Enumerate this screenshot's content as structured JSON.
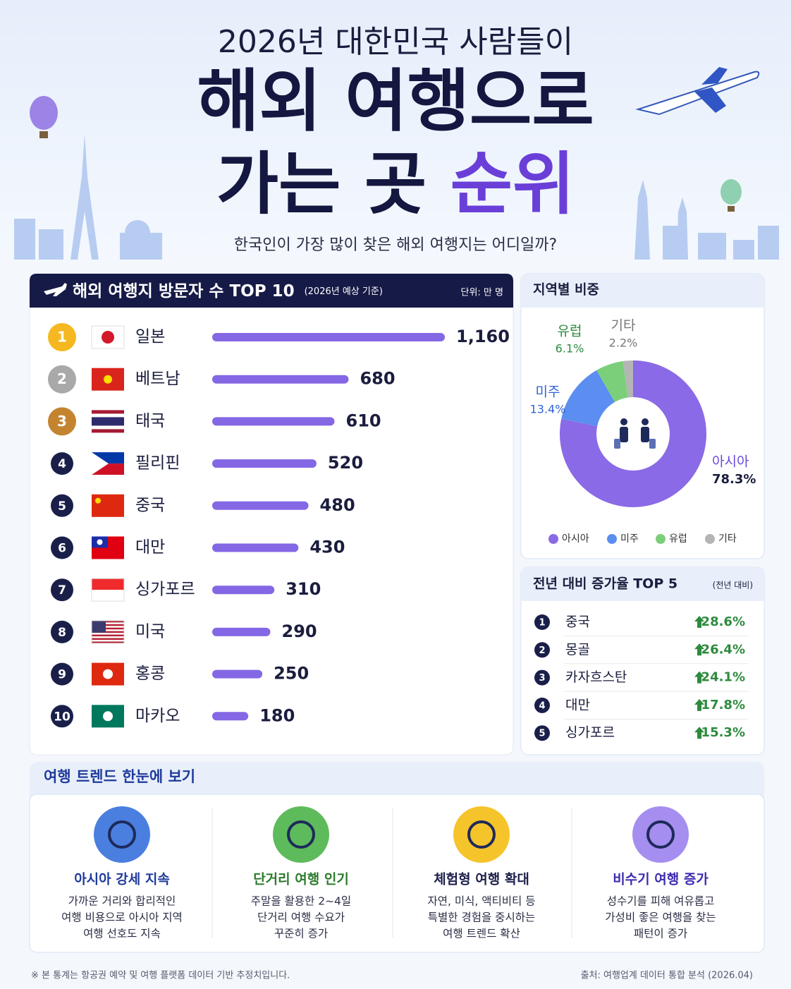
{
  "header": {
    "kicker": "2026년 대한민국 사람들이",
    "title_line1": "해외 여행으로",
    "title_line2": "가는 곳",
    "title_highlight": "순위",
    "subtitle": "한국인이 가장 많이 찾은 해외 여행지는 어디일까?"
  },
  "chart_data": [
    {
      "type": "bar",
      "title": "해외 여행지 방문자 수 TOP 10",
      "subtitle": "(2026년 예상 기준)",
      "unit": "단위: 만 명",
      "ranks": [
        "1",
        "2",
        "3",
        "4",
        "5",
        "6",
        "7",
        "8",
        "9",
        "10"
      ],
      "categories": [
        "일본",
        "베트남",
        "태국",
        "필리핀",
        "중국",
        "대만",
        "싱가포르",
        "미국",
        "홍콩",
        "마카오"
      ],
      "values": [
        1160,
        680,
        610,
        520,
        480,
        430,
        310,
        290,
        250,
        180
      ],
      "value_labels": [
        "1,160",
        "680",
        "610",
        "520",
        "480",
        "430",
        "310",
        "290",
        "250",
        "180"
      ],
      "color": "#8467e4"
    },
    {
      "type": "pie",
      "title": "지역별 비중",
      "categories": [
        "아시아",
        "미주",
        "유럽",
        "기타"
      ],
      "values": [
        78.3,
        13.4,
        6.1,
        2.2
      ],
      "value_labels": [
        "78.3%",
        "13.4%",
        "6.1%",
        "2.2%"
      ],
      "colors": [
        "#8a6ae6",
        "#5b8ef0",
        "#7ccf7a",
        "#b5b5b5"
      ]
    }
  ],
  "growth": {
    "title": "전년 대비 증가율 TOP 5",
    "note": "(전년 대비)",
    "rows": [
      [
        "1",
        "중국",
        "28.6%"
      ],
      [
        "2",
        "몽골",
        "26.4%"
      ],
      [
        "3",
        "카자흐스탄",
        "24.1%"
      ],
      [
        "4",
        "대만",
        "17.8%"
      ],
      [
        "5",
        "싱가포르",
        "15.3%"
      ]
    ]
  },
  "trends": {
    "title": "여행 트렌드 한눈에 보기",
    "items": [
      {
        "title": "아시아 강세 지속",
        "lines": [
          "가까운 거리와 합리적인",
          "여행 비용으로 아시아 지역",
          "여행 선호도 지속"
        ]
      },
      {
        "title": "단거리 여행 인기",
        "lines": [
          "주말을 활용한 2~4일",
          "단거리 여행 수요가",
          "꾸준히 증가"
        ]
      },
      {
        "title": "체험형 여행 확대",
        "lines": [
          "자연, 미식, 액티비티 등",
          "특별한 경험을 중시하는",
          "여행 트렌드 확산"
        ]
      },
      {
        "title": "비수기 여행 증가",
        "lines": [
          "성수기를 피해 여유롭고",
          "가성비 좋은 여행을 찾는",
          "패턴이 증가"
        ]
      }
    ]
  },
  "footer": {
    "note": "※ 본 통계는 항공권 예약 및 여행 플랫폼 데이터 기반 추정치입니다.",
    "source": "출처: 여행업계 데이터 통합 분석 (2026.04)"
  }
}
